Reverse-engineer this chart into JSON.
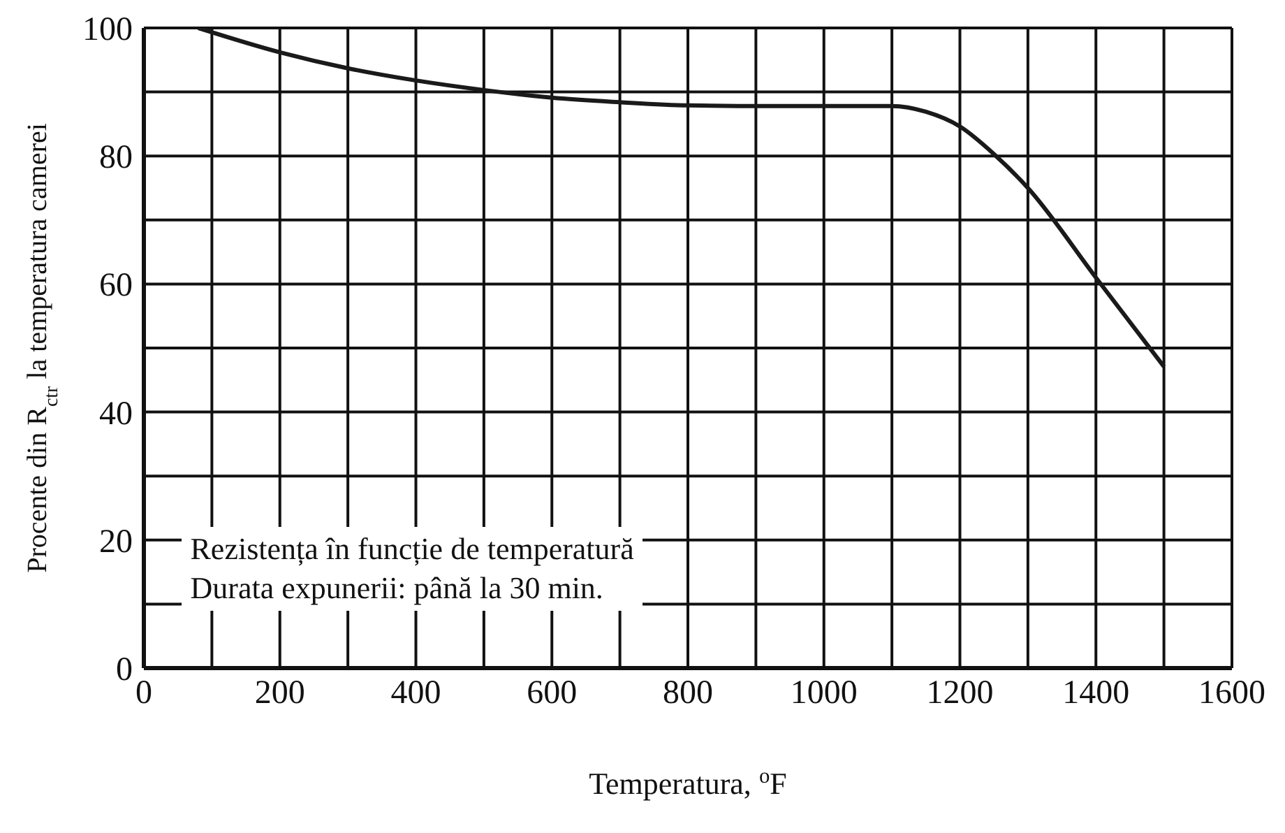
{
  "chart_data": {
    "type": "line",
    "xlabel": "Temperatura, $^{o}$F",
    "ylabel": "Procente din R$_{ctr}$ la temperatura camerei",
    "annotations": [
      "Rezistența în funcție de temperatură",
      "Durata expunerii: până la 30 min."
    ],
    "x": [
      80,
      200,
      300,
      400,
      500,
      600,
      700,
      800,
      900,
      1000,
      1100,
      1150,
      1200,
      1250,
      1300,
      1400,
      1500
    ],
    "series": [
      {
        "color": "#1a1a1a",
        "values": [
          100,
          96.2,
          93.7,
          91.8,
          90.3,
          89.1,
          88.4,
          87.9,
          87.8,
          87.8,
          87.8,
          86.9,
          84.6,
          80.3,
          75,
          61,
          47.1
        ]
      }
    ],
    "xlim": [
      0,
      1600
    ],
    "xticks": [
      0,
      {
        "value": 100,
        "label": null
      },
      200,
      {
        "value": 300,
        "label": null
      },
      400,
      {
        "value": 500,
        "label": null
      },
      600,
      {
        "value": 700,
        "label": null
      },
      800,
      {
        "value": 900,
        "label": null
      },
      1000,
      {
        "value": 1100,
        "label": null
      },
      1200,
      {
        "value": 1300,
        "label": null
      },
      1400,
      {
        "value": 1500,
        "label": null
      },
      1600
    ],
    "ylim": [
      0,
      100
    ],
    "yticks": [
      0,
      {
        "value": 10,
        "label": null
      },
      20,
      {
        "value": 30,
        "label": null
      },
      40,
      {
        "value": 50,
        "label": null
      },
      60,
      {
        "value": 70,
        "label": null
      },
      80,
      {
        "value": 90,
        "label": null
      },
      100
    ],
    "grid": true,
    "marker": "none",
    "line_style": "solid"
  }
}
